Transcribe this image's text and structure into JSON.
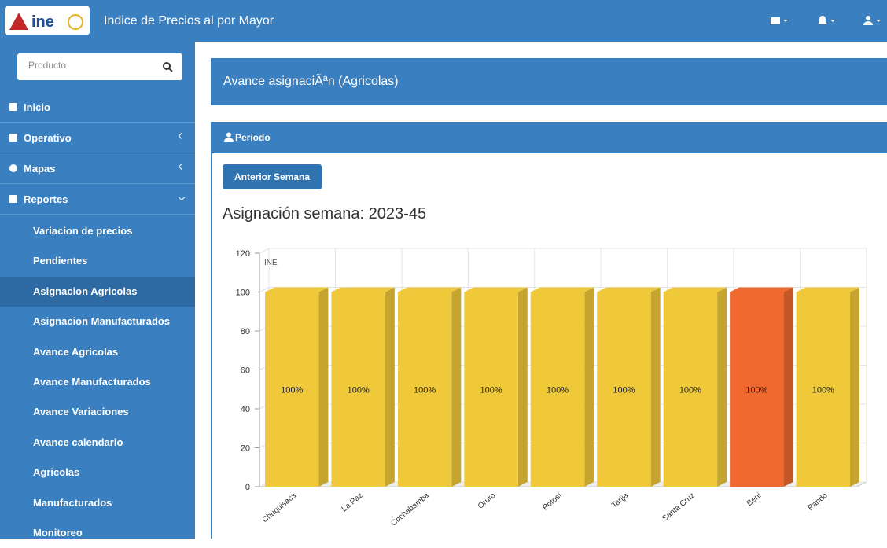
{
  "header": {
    "title": "Indice de Precios al por Mayor"
  },
  "sidebar": {
    "search_placeholder": "Producto",
    "items": [
      "Inicio",
      "Operativo",
      "Mapas",
      "Reportes"
    ],
    "subitems": [
      "Variacion de precios",
      "Pendientes",
      "Asignacion Agricolas",
      "Asignacion Manufacturados",
      "Avance Agricolas",
      "Avance Manufacturados",
      "Avance Variaciones",
      "Avance calendario",
      "Agricolas",
      "Manufacturados",
      "Monitoreo"
    ],
    "active": "Asignacion Agricolas"
  },
  "page_header": "Avance asignaciÃªn (Agricolas)",
  "panel": {
    "title": "Periodo",
    "button": "Anterior Semana",
    "heading": "Asignación semana: 2023-45"
  },
  "chart_data": {
    "type": "bar3d",
    "watermark": "INE",
    "categories": [
      "Chuquisaca",
      "La Paz",
      "Cochabamba",
      "Oruro",
      "Potosí",
      "Tarija",
      "Santa Cruz",
      "Beni",
      "Pando"
    ],
    "values": [
      100,
      100,
      100,
      100,
      100,
      100,
      100,
      100,
      100
    ],
    "value_labels": [
      "100%",
      "100%",
      "100%",
      "100%",
      "100%",
      "100%",
      "100%",
      "100%",
      "100%"
    ],
    "colors": [
      "#f0c93a",
      "#f0c93a",
      "#f0c93a",
      "#f0c93a",
      "#f0c93a",
      "#f0c93a",
      "#f0c93a",
      "#f06a30",
      "#f0c93a"
    ],
    "ylim": [
      0,
      120
    ],
    "yticks": [
      0,
      20,
      40,
      60,
      80,
      100,
      120
    ],
    "grid": true
  }
}
